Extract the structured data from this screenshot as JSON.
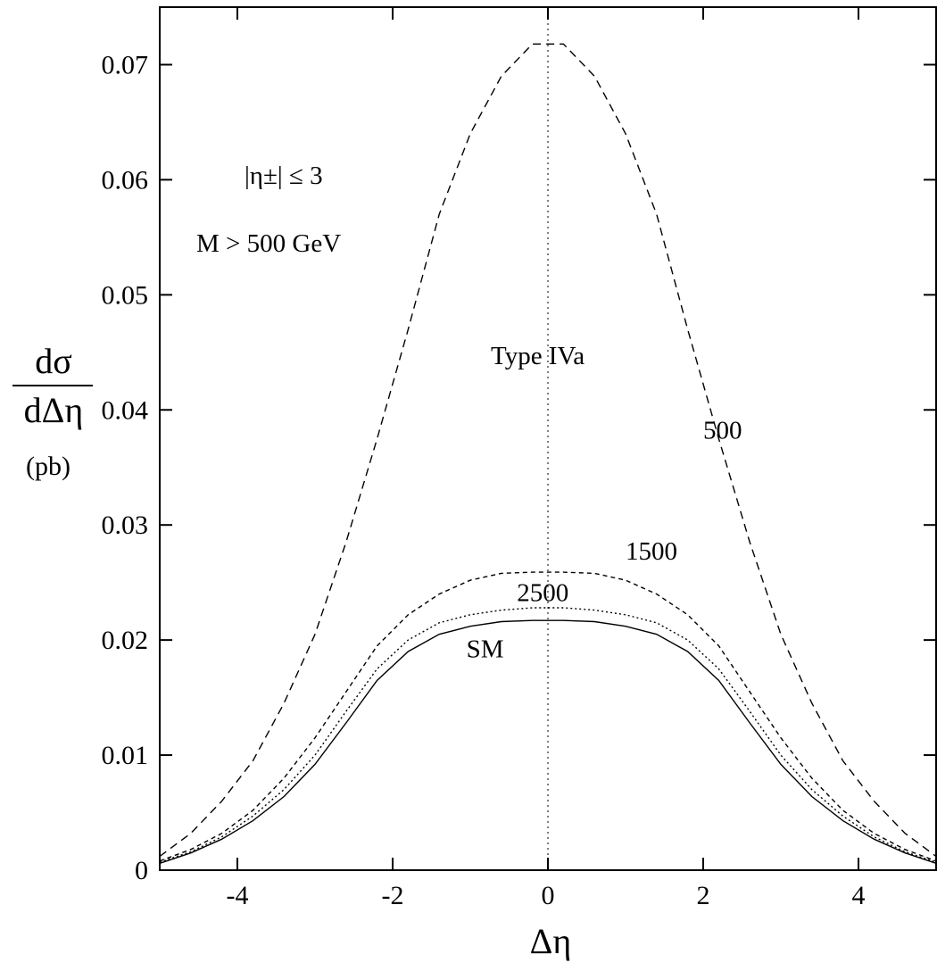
{
  "chart_data": {
    "type": "line",
    "xlabel": "Δη",
    "ylabel": {
      "numerator": "dσ",
      "denominator": "dΔη",
      "unit": "(pb)"
    },
    "xlim": [
      -5,
      5
    ],
    "ylim": [
      0,
      0.075
    ],
    "x_ticks": [
      -4,
      -2,
      0,
      2,
      4
    ],
    "x_tick_labels": [
      "-4",
      "-2",
      "0",
      "2",
      "4"
    ],
    "y_ticks": [
      0,
      0.01,
      0.02,
      0.03,
      0.04,
      0.05,
      0.06,
      0.07
    ],
    "y_tick_labels": [
      "0",
      "0.01",
      "0.02",
      "0.03",
      "0.04",
      "0.05",
      "0.06",
      "0.07"
    ],
    "grid": false,
    "vertical_reference_line": {
      "x": 0,
      "style": "dotted"
    },
    "annotations": {
      "cut_eta": "|η±| ≤ 3",
      "cut_mass": "M > 500 GeV",
      "model": "Type IVa"
    },
    "x": [
      -5.0,
      -4.6,
      -4.2,
      -3.8,
      -3.4,
      -3.0,
      -2.6,
      -2.2,
      -1.8,
      -1.4,
      -1.0,
      -0.6,
      -0.2,
      0.2,
      0.6,
      1.0,
      1.4,
      1.8,
      2.2,
      2.6,
      3.0,
      3.4,
      3.8,
      4.2,
      4.6,
      5.0
    ],
    "series": [
      {
        "name": "500",
        "style": "dashed",
        "values": [
          0.0012,
          0.0032,
          0.006,
          0.0095,
          0.0145,
          0.0205,
          0.0285,
          0.0375,
          0.047,
          0.057,
          0.064,
          0.069,
          0.0718,
          0.0718,
          0.069,
          0.064,
          0.057,
          0.047,
          0.0375,
          0.0285,
          0.0205,
          0.0145,
          0.0095,
          0.006,
          0.0032,
          0.0012
        ]
      },
      {
        "name": "1500",
        "style": "short-dashed",
        "values": [
          0.0008,
          0.0018,
          0.0032,
          0.0052,
          0.008,
          0.0115,
          0.0155,
          0.0195,
          0.0222,
          0.024,
          0.0252,
          0.0258,
          0.0259,
          0.0259,
          0.0258,
          0.0252,
          0.024,
          0.0222,
          0.0195,
          0.0155,
          0.0115,
          0.008,
          0.0052,
          0.0032,
          0.0018,
          0.0008
        ]
      },
      {
        "name": "2500",
        "style": "dotted",
        "values": [
          0.0007,
          0.0016,
          0.0029,
          0.0047,
          0.007,
          0.01,
          0.0138,
          0.0175,
          0.02,
          0.0215,
          0.0222,
          0.0226,
          0.0228,
          0.0228,
          0.0226,
          0.0222,
          0.0215,
          0.02,
          0.0175,
          0.0138,
          0.01,
          0.007,
          0.0047,
          0.0029,
          0.0016,
          0.0007
        ]
      },
      {
        "name": "SM",
        "style": "solid",
        "values": [
          0.0006,
          0.0015,
          0.0027,
          0.0043,
          0.0064,
          0.0092,
          0.0128,
          0.0165,
          0.019,
          0.0205,
          0.0212,
          0.0216,
          0.0217,
          0.0217,
          0.0216,
          0.0212,
          0.0205,
          0.019,
          0.0165,
          0.0128,
          0.0092,
          0.0064,
          0.0043,
          0.0027,
          0.0015,
          0.0006
        ]
      }
    ],
    "series_label_anchors": [
      {
        "name": "500",
        "x": 2.0,
        "y": 0.0375
      },
      {
        "name": "1500",
        "x": 1.0,
        "y": 0.027
      },
      {
        "name": "2500",
        "x": -0.4,
        "y": 0.0234
      },
      {
        "name": "SM",
        "x": -1.05,
        "y": 0.0185
      }
    ]
  }
}
